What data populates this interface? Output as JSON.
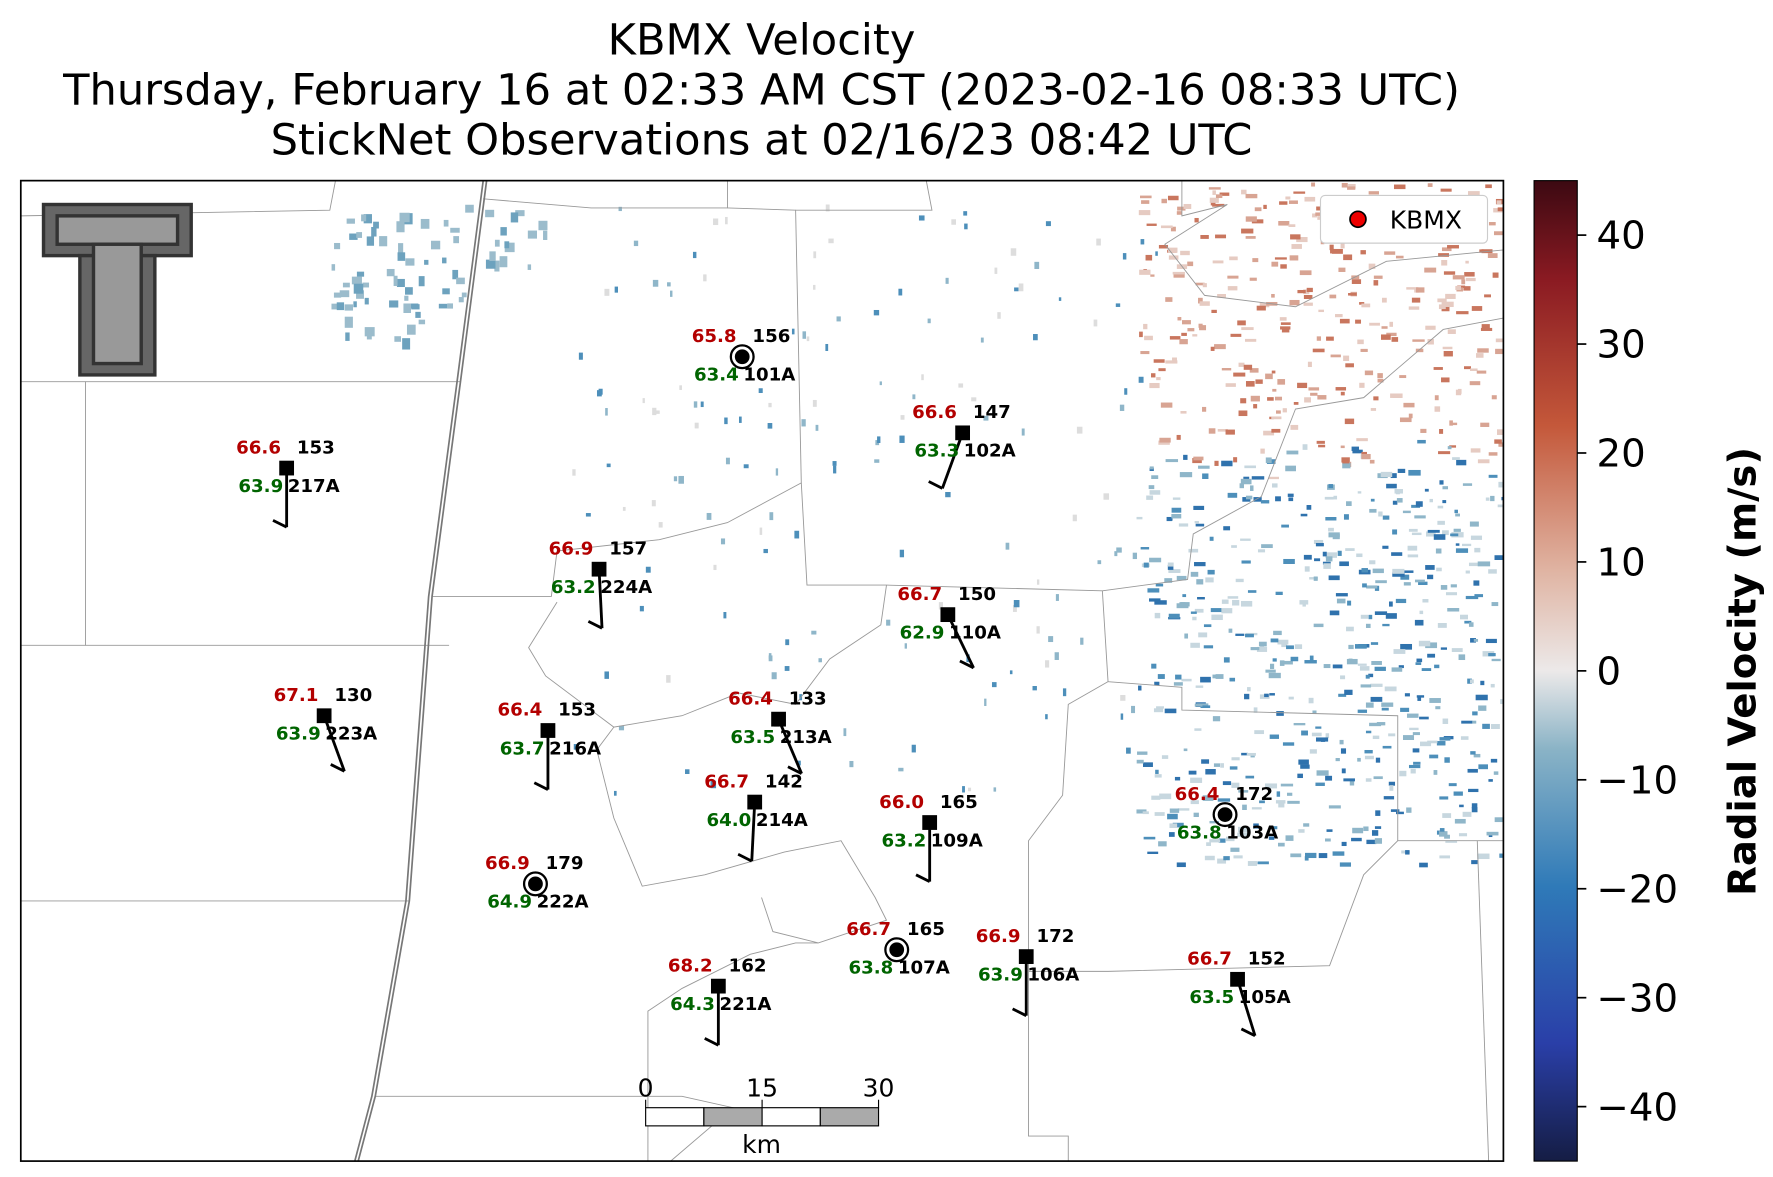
{
  "header": {
    "title": "KBMX Velocity",
    "subtitle": "Thursday, February 16 at 02:33 AM CST (2023-02-16 08:33 UTC)",
    "observations": "StickNet Observations at 02/16/23 08:42 UTC"
  },
  "legend": {
    "label": "KBMX"
  },
  "stations": [
    {
      "id": "101A",
      "temperature": "65.8",
      "dewpoint": "63.4",
      "pressure": "156"
    },
    {
      "id": "102A",
      "temperature": "66.6",
      "dewpoint": "63.3",
      "pressure": "147"
    },
    {
      "id": "217A",
      "temperature": "66.6",
      "dewpoint": "63.9",
      "pressure": "153"
    },
    {
      "id": "224A",
      "temperature": "66.9",
      "dewpoint": "63.2",
      "pressure": "157"
    },
    {
      "id": "110A",
      "temperature": "66.7",
      "dewpoint": "62.9",
      "pressure": "150"
    },
    {
      "id": "223A",
      "temperature": "67.1",
      "dewpoint": "63.9",
      "pressure": "130"
    },
    {
      "id": "216A",
      "temperature": "66.4",
      "dewpoint": "63.7",
      "pressure": "153"
    },
    {
      "id": "213A",
      "temperature": "66.4",
      "dewpoint": "63.5",
      "pressure": "133"
    },
    {
      "id": "214A",
      "temperature": "66.7",
      "dewpoint": "64.0",
      "pressure": "142"
    },
    {
      "id": "109A",
      "temperature": "66.0",
      "dewpoint": "63.2",
      "pressure": "165"
    },
    {
      "id": "103A",
      "temperature": "66.4",
      "dewpoint": "63.8",
      "pressure": "172"
    },
    {
      "id": "222A",
      "temperature": "66.9",
      "dewpoint": "64.9",
      "pressure": "179"
    },
    {
      "id": "107A",
      "temperature": "66.7",
      "dewpoint": "63.8",
      "pressure": "165"
    },
    {
      "id": "106A",
      "temperature": "66.9",
      "dewpoint": "63.9",
      "pressure": "172"
    },
    {
      "id": "221A",
      "temperature": "68.2",
      "dewpoint": "64.3",
      "pressure": "162"
    },
    {
      "id": "105A",
      "temperature": "66.7",
      "dewpoint": "63.5",
      "pressure": "152"
    }
  ],
  "scale_bar": {
    "ticks": [
      0,
      15,
      30
    ],
    "unit": "km"
  },
  "colorbar": {
    "label": "Radial Velocity (m/s)",
    "lim": [
      -45,
      45
    ],
    "ticks": [
      40,
      30,
      20,
      10,
      0,
      {
        "value": -10,
        "label": "−10"
      },
      {
        "value": -20,
        "label": "−20"
      },
      {
        "value": -30,
        "label": "−30"
      },
      {
        "value": -40,
        "label": "−40"
      }
    ]
  }
}
